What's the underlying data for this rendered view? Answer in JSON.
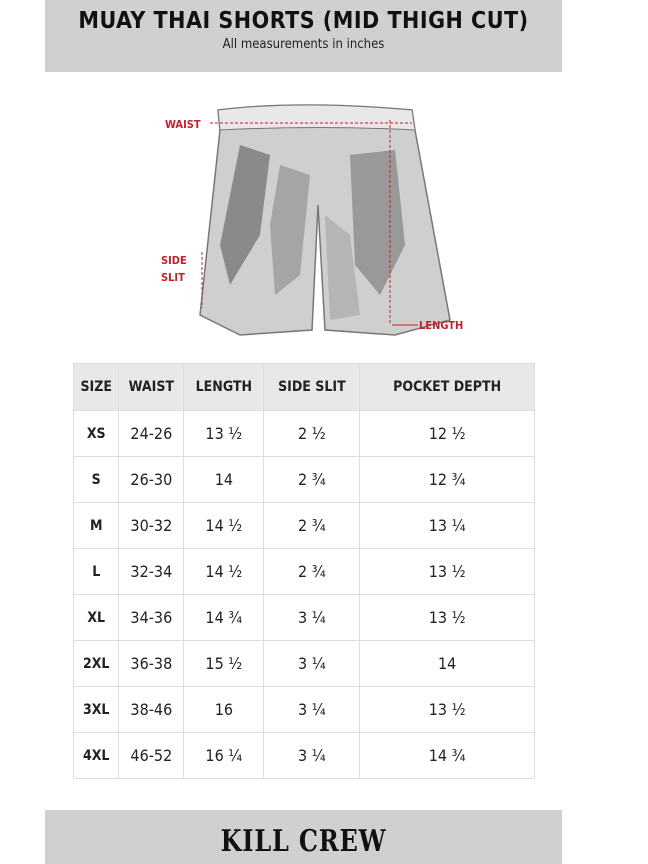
{
  "header": {
    "title": "MUAY THAI SHORTS (MID THIGH CUT)",
    "subtitle": "All measurements in inches"
  },
  "diagram": {
    "labels": {
      "waist": "WAIST",
      "side_slit_1": "SIDE",
      "side_slit_2": "SLIT",
      "length": "LENGTH"
    },
    "label_color": "#c8202a"
  },
  "table": {
    "headers": [
      "SIZE",
      "WAIST",
      "LENGTH",
      "SIDE SLIT",
      "POCKET DEPTH"
    ],
    "rows": [
      [
        "XS",
        "24-26",
        "13 ½",
        "2 ½",
        "12 ½"
      ],
      [
        "S",
        "26-30",
        "14",
        "2 ¾",
        "12 ¾"
      ],
      [
        "M",
        "30-32",
        "14 ½",
        "2 ¾",
        "13 ¼"
      ],
      [
        "L",
        "32-34",
        "14 ½",
        "2 ¾",
        "13 ½"
      ],
      [
        "XL",
        "34-36",
        "14 ¾",
        "3 ¼",
        "13 ½"
      ],
      [
        "2XL",
        "36-38",
        "15 ½",
        "3 ¼",
        "14"
      ],
      [
        "3XL",
        "38-46",
        "16",
        "3 ¼",
        "13 ½"
      ],
      [
        "4XL",
        "46-52",
        "16 ¼",
        "3 ¼",
        "14 ¾"
      ]
    ]
  },
  "footer": {
    "logo": "KILL CREW"
  }
}
